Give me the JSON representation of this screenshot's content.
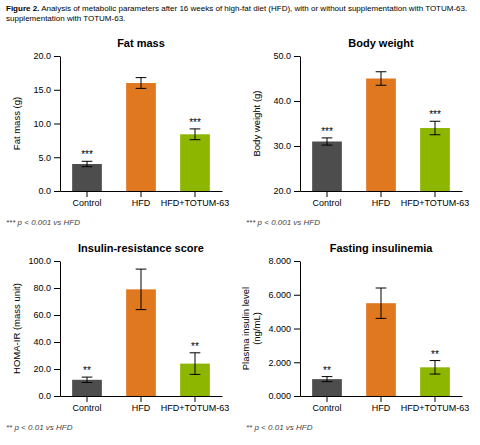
{
  "title": "Figure 2.",
  "subtitle": " Analysis of metabolic parameters after 16 weeks of high-fat diet (HFD), with or without supplementation with TOTUM-63.",
  "annotations": [
    "supplementation with TOTUM-63."
  ],
  "chart_data": [
    {
      "type": "bar",
      "title": "Fat mass",
      "ylabel": "Fat mass (g)",
      "categories": [
        "Control",
        "HFD",
        "HFD+TOTUM-63"
      ],
      "values": [
        4.0,
        16.0,
        8.4
      ],
      "errors": [
        0.4,
        0.8,
        0.8
      ],
      "colors": [
        "#4d4d4d",
        "#e07820",
        "#8db600"
      ],
      "ylim": [
        0.0,
        20.0
      ],
      "yticks": [
        {
          "value": 0.0,
          "label": "0.0"
        },
        {
          "value": 5.0,
          "label": "5.0"
        },
        {
          "value": 10.0,
          "label": "10.0"
        },
        {
          "value": 15.0,
          "label": "15.0"
        },
        {
          "value": 20.0,
          "label": "20.0"
        }
      ],
      "grid": false,
      "annotations": [
        {
          "text": "***",
          "x": "Control"
        },
        {
          "text": "***",
          "x": "HFD+TOTUM-63"
        },
        {
          "text": "*** p < 0.001 vs HFD"
        }
      ]
    },
    {
      "type": "bar",
      "title": "Body weight",
      "ylabel": "Body weight (g)",
      "categories": [
        "Control",
        "HFD",
        "HFD+TOTUM-63"
      ],
      "values": [
        31.0,
        45.0,
        34.0
      ],
      "errors": [
        0.8,
        1.5,
        1.5
      ],
      "colors": [
        "#4d4d4d",
        "#e07820",
        "#8db600"
      ],
      "ylim": [
        20.0,
        50.0
      ],
      "yticks": [
        {
          "value": 20.0,
          "label": "20.0"
        },
        {
          "value": 30.0,
          "label": "30.0"
        },
        {
          "value": 40.0,
          "label": "40.0"
        },
        {
          "value": 50.0,
          "label": "50.0"
        }
      ],
      "grid": false,
      "annotations": [
        {
          "text": "***",
          "x": "Control"
        },
        {
          "text": "***",
          "x": "HFD+TOTUM-63"
        },
        {
          "text": "*** p < 0.001 vs HFD"
        }
      ]
    },
    {
      "type": "bar",
      "title": "Insulin-resistance score",
      "ylabel": "HOMA-IR (mass unit)",
      "categories": [
        "Control",
        "HFD",
        "HFD+TOTUM-63"
      ],
      "values": [
        12.0,
        79.0,
        24.0
      ],
      "errors": [
        2.0,
        15.0,
        8.0
      ],
      "colors": [
        "#4d4d4d",
        "#e07820",
        "#8db600"
      ],
      "ylim": [
        0.0,
        100.0
      ],
      "yticks": [
        {
          "value": 0.0,
          "label": "0.0"
        },
        {
          "value": 20.0,
          "label": "20.0"
        },
        {
          "value": 40.0,
          "label": "40.0"
        },
        {
          "value": 60.0,
          "label": "60.0"
        },
        {
          "value": 80.0,
          "label": "80.0"
        },
        {
          "value": 100.0,
          "label": "100.0"
        }
      ],
      "grid": false,
      "annotations": [
        {
          "text": "**",
          "x": "Control"
        },
        {
          "text": "**",
          "x": "HFD+TOTUM-63"
        },
        {
          "text": "** p < 0.01 vs HFD"
        }
      ]
    },
    {
      "type": "bar",
      "title": "Fasting insulinemia",
      "ylabel": "Plasma insulin level\n(ng/mL)",
      "categories": [
        "Control",
        "HFD",
        "HFD+TOTUM-63"
      ],
      "values": [
        1.0,
        5.5,
        1.7
      ],
      "errors": [
        0.15,
        0.9,
        0.4
      ],
      "colors": [
        "#4d4d4d",
        "#e07820",
        "#8db600"
      ],
      "ylim": [
        0.0,
        8.0
      ],
      "yticks": [
        {
          "value": 0.0,
          "label": "0.000"
        },
        {
          "value": 2.0,
          "label": "2.000"
        },
        {
          "value": 4.0,
          "label": "4.000"
        },
        {
          "value": 6.0,
          "label": "6.000"
        },
        {
          "value": 8.0,
          "label": "8.000"
        }
      ],
      "grid": false,
      "annotations": [
        {
          "text": "**",
          "x": "Control"
        },
        {
          "text": "**",
          "x": "HFD+TOTUM-63"
        },
        {
          "text": "** p < 0.01 vs HFD"
        }
      ]
    }
  ]
}
